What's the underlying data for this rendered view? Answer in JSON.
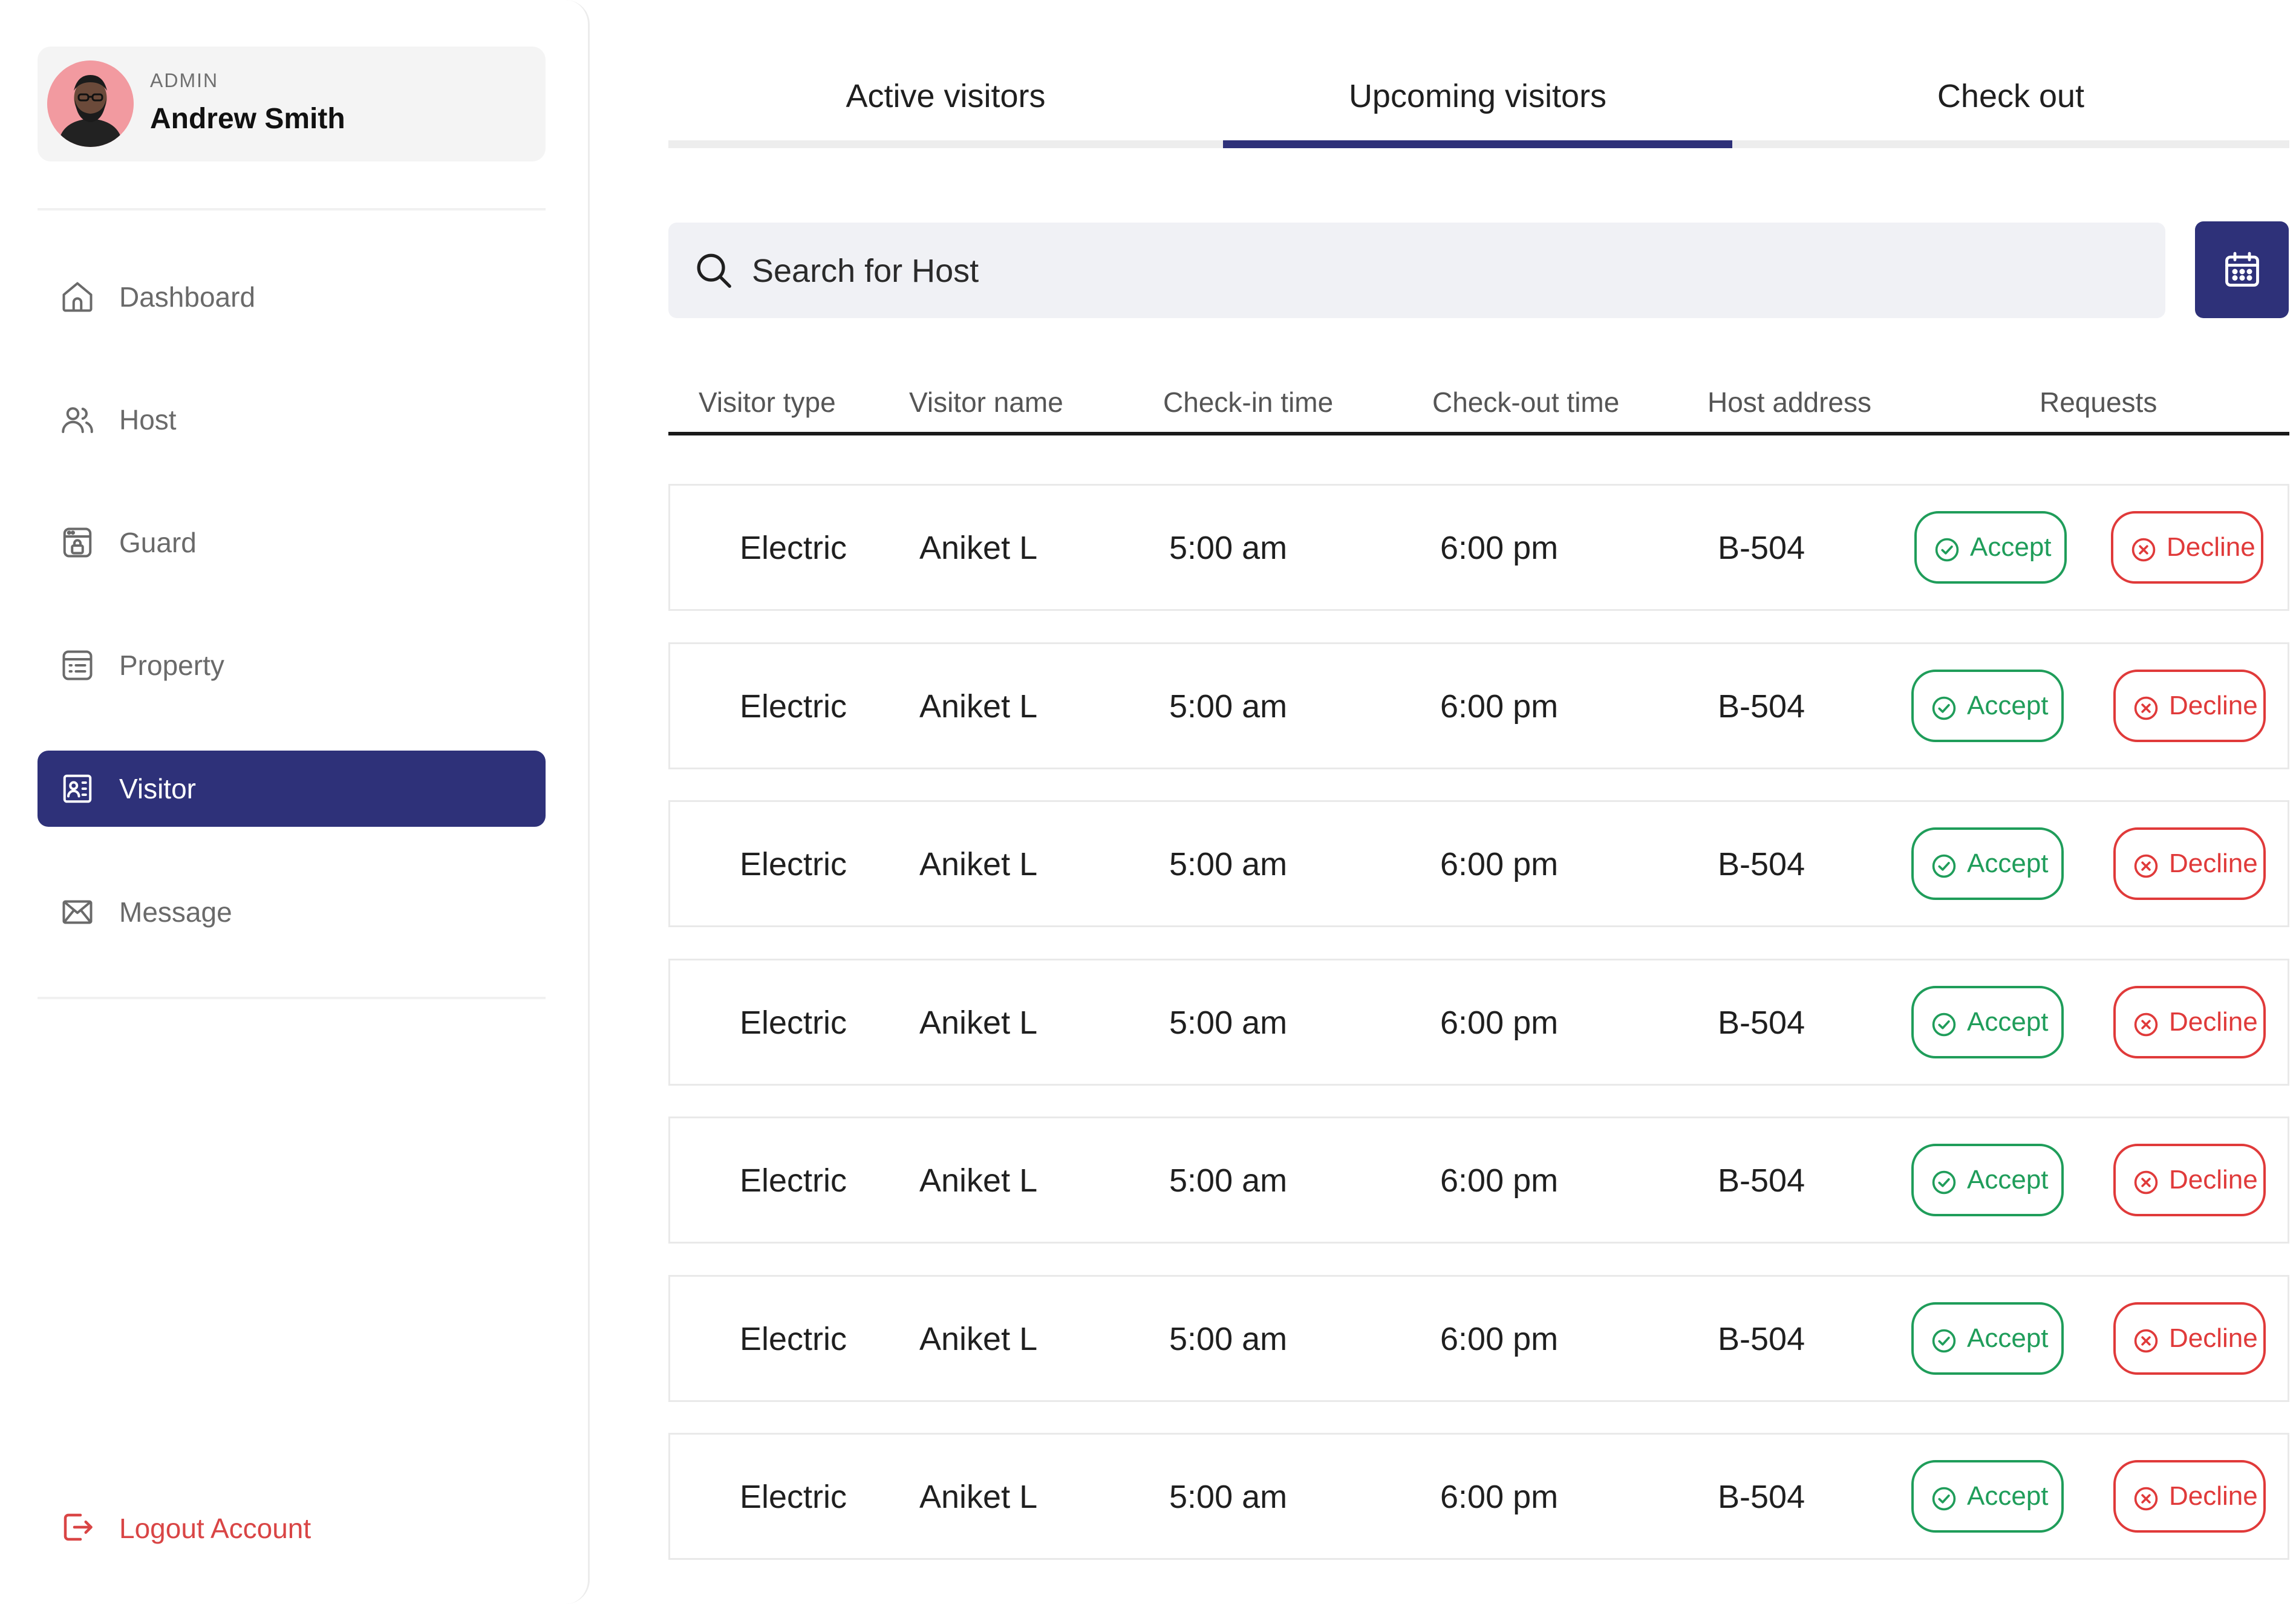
{
  "profile": {
    "role": "ADMIN",
    "name": "Andrew Smith"
  },
  "nav": [
    {
      "label": "Dashboard",
      "icon": "home-icon"
    },
    {
      "label": "Host",
      "icon": "users-icon"
    },
    {
      "label": "Guard",
      "icon": "guard-icon"
    },
    {
      "label": "Property",
      "icon": "property-icon"
    },
    {
      "label": "Visitor",
      "icon": "visitor-card-icon",
      "active": true
    },
    {
      "label": "Message",
      "icon": "mail-icon"
    }
  ],
  "logout": {
    "label": "Logout Account",
    "icon": "logout-icon"
  },
  "tabs": [
    {
      "label": "Active visitors"
    },
    {
      "label": "Upcoming visitors",
      "active": true
    },
    {
      "label": "Check out"
    }
  ],
  "search": {
    "placeholder": "Search for Host"
  },
  "table": {
    "headers": [
      "Visitor type",
      "Visitor name",
      "Check-in time",
      "Check-out time",
      "Host address",
      "Requests"
    ],
    "rows": [
      {
        "type": "Electric",
        "name": "Aniket L",
        "checkin": "5:00 am",
        "checkout": "6:00 pm",
        "address": "B-504"
      },
      {
        "type": "Electric",
        "name": "Aniket L",
        "checkin": "5:00 am",
        "checkout": "6:00 pm",
        "address": "B-504"
      },
      {
        "type": "Electric",
        "name": "Aniket L",
        "checkin": "5:00 am",
        "checkout": "6:00 pm",
        "address": "B-504"
      },
      {
        "type": "Electric",
        "name": "Aniket L",
        "checkin": "5:00 am",
        "checkout": "6:00 pm",
        "address": "B-504"
      },
      {
        "type": "Electric",
        "name": "Aniket L",
        "checkin": "5:00 am",
        "checkout": "6:00 pm",
        "address": "B-504"
      },
      {
        "type": "Electric",
        "name": "Aniket L",
        "checkin": "5:00 am",
        "checkout": "6:00 pm",
        "address": "B-504"
      },
      {
        "type": "Electric",
        "name": "Aniket L",
        "checkin": "5:00 am",
        "checkout": "6:00 pm",
        "address": "B-504"
      }
    ],
    "accept_label": "Accept",
    "decline_label": "Decline"
  },
  "colors": {
    "primary": "#2e3179",
    "accept": "#1f9d5a",
    "decline": "#e03a3a",
    "logout": "#d94545"
  }
}
